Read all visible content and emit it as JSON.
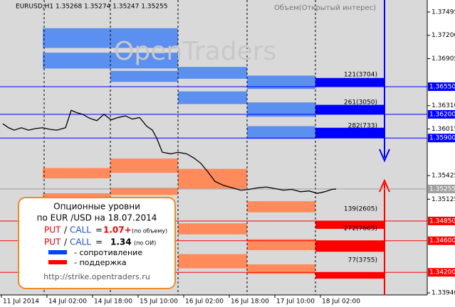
{
  "chart_data": {
    "type": "line",
    "title": "EURUSD,H1  1.35268 1.35274 1.35247 1.35255",
    "subtitle": "Объем(Открытый интерес)",
    "watermark": "OpenTraders",
    "xlim": [
      0,
      150
    ],
    "ylim": [
      1.33914,
      1.37647
    ],
    "xticks": [
      {
        "value": 0,
        "label": "11 Jul 2014"
      },
      {
        "value": 16,
        "label": "14 Jul 02:00"
      },
      {
        "value": 32,
        "label": "14 Jul 18:00"
      },
      {
        "value": 48,
        "label": "15 Jul 10:00"
      },
      {
        "value": 64,
        "label": "16 Jul 02:00"
      },
      {
        "value": 80,
        "label": "16 Jul 18:00"
      },
      {
        "value": 96,
        "label": "17 Jul 10:00"
      },
      {
        "value": 112,
        "label": "18 Jul 02:00"
      }
    ],
    "yticks": [
      {
        "value": 1.37495,
        "label": "1.37495"
      },
      {
        "value": 1.372,
        "label": "1.37200"
      },
      {
        "value": 1.36905,
        "label": "1.36905"
      },
      {
        "value": 1.3631,
        "label": "1.36310"
      },
      {
        "value": 1.36015,
        "label": "1.36015"
      },
      {
        "value": 1.35425,
        "label": "1.35425"
      },
      {
        "value": 1.35125,
        "label": "1.35125"
      },
      {
        "value": 1.3394,
        "label": "1.33940"
      }
    ],
    "separators": [
      15.5,
      38.75,
      62.5,
      86.75,
      110.75
    ],
    "series": [
      {
        "name": "EURUSD",
        "color": "#000000",
        "x": [
          1,
          3,
          5,
          7.5,
          10,
          12.5,
          15,
          17.5,
          20,
          23,
          25,
          27,
          29,
          31.5,
          34,
          36.5,
          39,
          41.5,
          44,
          46.5,
          49,
          51.5,
          53.5,
          55,
          57,
          60,
          62.5,
          65.5,
          68,
          70.5,
          73,
          75.5,
          78.5,
          81.5,
          84.5,
          87.5,
          90.5,
          93.5,
          96.5,
          99.5,
          102.5,
          105.5,
          108.5,
          111.5,
          114,
          116.5,
          118
        ],
        "values": [
          1.3608,
          1.3603,
          1.36,
          1.3603,
          1.36,
          1.3602,
          1.3603,
          1.3601,
          1.36,
          1.3603,
          1.3625,
          1.3622,
          1.362,
          1.3615,
          1.3612,
          1.362,
          1.3613,
          1.3616,
          1.3618,
          1.3614,
          1.3616,
          1.3605,
          1.36,
          1.359,
          1.3572,
          1.357,
          1.3572,
          1.357,
          1.3565,
          1.3558,
          1.3547,
          1.3535,
          1.353,
          1.3527,
          1.3524,
          1.3525,
          1.3527,
          1.3528,
          1.3526,
          1.3524,
          1.3525,
          1.3522,
          1.3523,
          1.352,
          1.3522,
          1.3525,
          1.35255
        ]
      }
    ],
    "resistance_color": "#5b8ff0",
    "support_color": "#ff8a5c",
    "bands": [
      {
        "kind": "resistance",
        "x": [
          15,
          62.5
        ],
        "y": [
          1.3704,
          1.3729
        ]
      },
      {
        "kind": "resistance",
        "x": [
          15,
          62.5
        ],
        "y": [
          1.3678,
          1.3698
        ]
      },
      {
        "kind": "resistance",
        "x": [
          38.75,
          62.5
        ],
        "y": [
          1.3661,
          1.3675
        ]
      },
      {
        "kind": "resistance",
        "x": [
          62.5,
          86.75
        ],
        "y": [
          1.3665,
          1.368
        ]
      },
      {
        "kind": "resistance",
        "x": [
          62.5,
          86.75
        ],
        "y": [
          1.3633,
          1.3649
        ]
      },
      {
        "kind": "resistance",
        "x": [
          86.75,
          110.75
        ],
        "y": [
          1.3652,
          1.3669
        ]
      },
      {
        "kind": "resistance",
        "x": [
          86.75,
          110.75
        ],
        "y": [
          1.3617,
          1.3635
        ]
      },
      {
        "kind": "resistance",
        "x": [
          86.75,
          110.75
        ],
        "y": [
          1.3589,
          1.3605
        ]
      },
      {
        "kind": "resistance",
        "x": [
          110.75,
          135
        ],
        "y": [
          1.3655,
          1.3666
        ],
        "color": "#0000ff"
      },
      {
        "kind": "resistance",
        "x": [
          110.75,
          135
        ],
        "y": [
          1.362,
          1.3632
        ],
        "color": "#0000ff"
      },
      {
        "kind": "resistance",
        "x": [
          110.75,
          135
        ],
        "y": [
          1.359,
          1.3603
        ],
        "color": "#0000ff"
      },
      {
        "kind": "support",
        "x": [
          15,
          38.75
        ],
        "y": [
          1.3539,
          1.3552
        ]
      },
      {
        "kind": "support",
        "x": [
          15,
          38.75
        ],
        "y": [
          1.3515,
          1.352
        ]
      },
      {
        "kind": "support",
        "x": [
          38.75,
          62.5
        ],
        "y": [
          1.3546,
          1.3564
        ]
      },
      {
        "kind": "support",
        "x": [
          38.75,
          62.5
        ],
        "y": [
          1.3518,
          1.3527
        ]
      },
      {
        "kind": "support",
        "x": [
          62.5,
          86.75
        ],
        "y": [
          1.3526,
          1.3551
        ]
      },
      {
        "kind": "support",
        "x": [
          86.75,
          110.75
        ],
        "y": [
          1.3496,
          1.351
        ]
      },
      {
        "kind": "support",
        "x": [
          62.5,
          86.75
        ],
        "y": [
          1.3468,
          1.3482
        ]
      },
      {
        "kind": "support",
        "x": [
          62.5,
          86.75
        ],
        "y": [
          1.3425,
          1.3443
        ]
      },
      {
        "kind": "support",
        "x": [
          86.75,
          110.75
        ],
        "y": [
          1.3448,
          1.3462
        ]
      },
      {
        "kind": "support",
        "x": [
          86.75,
          110.75
        ],
        "y": [
          1.3418,
          1.343
        ]
      },
      {
        "kind": "support",
        "x": [
          110.75,
          135
        ],
        "y": [
          1.3475,
          1.3485
        ],
        "color": "#ff0000"
      },
      {
        "kind": "support",
        "x": [
          110.75,
          135
        ],
        "y": [
          1.3446,
          1.346
        ],
        "color": "#ff0000"
      },
      {
        "kind": "support",
        "x": [
          110.75,
          135
        ],
        "y": [
          1.3412,
          1.342
        ],
        "color": "#ff0000"
      }
    ],
    "levels": [
      {
        "value": 1.3655,
        "label": "1.36550",
        "color": "#0000ff",
        "note": "121(3704)"
      },
      {
        "value": 1.362,
        "label": "1.36200",
        "color": "#0000ff",
        "note": "261(3050)"
      },
      {
        "value": 1.359,
        "label": "1.35900",
        "color": "#0000ff",
        "note": "282(733)"
      },
      {
        "value": 1.35255,
        "label": "1.35255",
        "color": "#a0a0a0"
      },
      {
        "value": 1.3485,
        "label": "1.34850",
        "color": "#ff0000",
        "note": "139(2605)"
      },
      {
        "value": 1.346,
        "label": "1.34600",
        "color": "#ff0000",
        "note": "272(7663)"
      },
      {
        "value": 1.342,
        "label": "1.34200",
        "color": "#ff0000",
        "note": "77(3755)"
      }
    ],
    "info": {
      "title": "Опционные уровни",
      "subtitle": "по EUR /USD на 18.07.2014",
      "put": "PUT",
      "slash": "/",
      "call": "CALL",
      "eq": "=",
      "ratio_volume": "1.07+",
      "ratio_volume_note": "(по объему)",
      "ratio_oi": "1.34",
      "ratio_oi_note": "(по ОИ)",
      "resistance": "- сопротивление",
      "support": "- поддержка",
      "url": "http://strike.opentraders.ru"
    }
  }
}
